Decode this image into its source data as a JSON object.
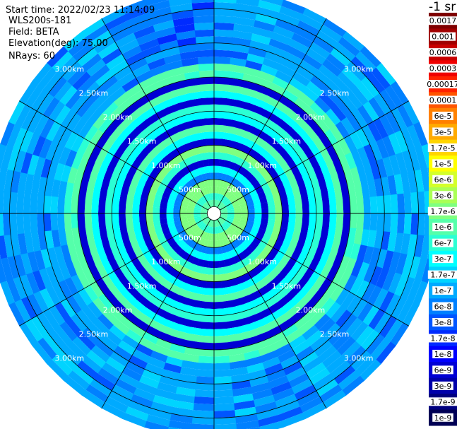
{
  "header": {
    "start_time": "Start time: 2022/02/23 11:14:09",
    "instrument": "WLS200s-181",
    "field": "Field: BETA",
    "elevation": "Elevation(deg): 75.00",
    "nrays": "NRays: 60"
  },
  "colorbar": {
    "unit": "-1 sr",
    "labels": [
      "0.0017",
      "0.001",
      "0.0006",
      "0.0003",
      "0.00017",
      "0.0001",
      "6e-5",
      "3e-5",
      "1.7e-5",
      "1e-5",
      "6e-6",
      "3e-6",
      "1.7e-6",
      "1e-6",
      "6e-7",
      "3e-7",
      "1.7e-7",
      "1e-7",
      "6e-8",
      "3e-8",
      "1.7e-8",
      "1e-8",
      "6e-9",
      "3e-9",
      "1.7e-9",
      "1e-9"
    ],
    "colors": [
      "#7f0000",
      "#a10000",
      "#c80000",
      "#ef0000",
      "#ff2200",
      "#ff5500",
      "#ff8000",
      "#ffaa00",
      "#ffd500",
      "#ffff00",
      "#d4ff2b",
      "#aaff55",
      "#7fff80",
      "#55ffaa",
      "#2bffd4",
      "#00ffff",
      "#00d4ff",
      "#00aaff",
      "#0080ff",
      "#0055ff",
      "#002bff",
      "#0000ff",
      "#0000d4",
      "#0000aa",
      "#00007f",
      "#000055"
    ]
  },
  "chart_data": {
    "type": "heatmap",
    "projection": "polar PPI",
    "elevation_deg": 75.0,
    "n_rays": 60,
    "range_rings_km": [
      0.5,
      1.0,
      1.5,
      2.0,
      2.5,
      3.0
    ],
    "ring_labels": [
      "500m",
      "1.00km",
      "1.50km",
      "2.00km",
      "2.50km",
      "3.00km"
    ],
    "radial_spokes_deg": [
      0,
      30,
      60,
      90,
      120,
      150,
      180,
      210,
      240,
      270,
      300,
      330
    ],
    "gate_km": 0.1,
    "max_range_km": 3.3,
    "rings": [
      {
        "from_km": 0.1,
        "to_km": 0.2,
        "value": "1e-6"
      },
      {
        "from_km": 0.2,
        "to_km": 0.3,
        "value": "6e-7"
      },
      {
        "from_km": 0.3,
        "to_km": 0.5,
        "value": "1.7e-6"
      },
      {
        "from_km": 0.5,
        "to_km": 0.6,
        "value": "6e-8"
      },
      {
        "from_km": 0.6,
        "to_km": 0.7,
        "value": "3e-7"
      },
      {
        "from_km": 0.7,
        "to_km": 0.8,
        "value": "6e-9"
      },
      {
        "from_km": 0.8,
        "to_km": 0.9,
        "value": "6e-7"
      },
      {
        "from_km": 0.9,
        "to_km": 1.0,
        "value": "1.7e-6"
      },
      {
        "from_km": 1.0,
        "to_km": 1.1,
        "value": "6e-9"
      },
      {
        "from_km": 1.1,
        "to_km": 1.2,
        "value": "3e-7"
      },
      {
        "from_km": 1.2,
        "to_km": 1.3,
        "value": "1e-6"
      },
      {
        "from_km": 1.3,
        "to_km": 1.4,
        "value": "6e-9"
      },
      {
        "from_km": 1.4,
        "to_km": 1.5,
        "value": "3e-7"
      },
      {
        "from_km": 1.5,
        "to_km": 1.6,
        "value": "6e-7"
      },
      {
        "from_km": 1.6,
        "to_km": 1.7,
        "value": "6e-9"
      },
      {
        "from_km": 1.7,
        "to_km": 1.8,
        "value": "3e-7"
      },
      {
        "from_km": 1.8,
        "to_km": 1.9,
        "value": "1e-6"
      },
      {
        "from_km": 1.9,
        "to_km": 2.0,
        "value": "6e-9"
      },
      {
        "from_km": 2.0,
        "to_km": 2.2,
        "value": "1e-6"
      },
      {
        "from_km": 2.2,
        "to_km": 3.3,
        "value": "1e-7"
      }
    ],
    "clear_air_sector_deg": [
      -30,
      0
    ],
    "clear_air_value": "6e-8"
  }
}
